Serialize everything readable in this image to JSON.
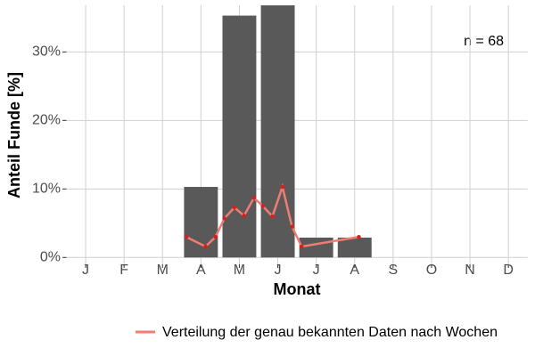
{
  "chart_data": {
    "type": "bar",
    "categories": [
      "J",
      "F",
      "M",
      "A",
      "M",
      "J",
      "J",
      "A",
      "S",
      "O",
      "N",
      "D"
    ],
    "values": [
      0,
      0,
      0,
      10.3,
      35.3,
      36.8,
      2.9,
      2.9,
      0,
      0,
      0,
      0
    ],
    "color": "#595959",
    "xlabel": "Monat",
    "ylabel": "Anteil Funde [%]",
    "ylim": [
      -1,
      36.8
    ],
    "yticks": [
      {
        "value": 0,
        "label": "0%"
      },
      {
        "value": 10,
        "label": "10%"
      },
      {
        "value": 20,
        "label": "20%"
      },
      {
        "value": 30,
        "label": "30%"
      }
    ],
    "grid": true,
    "annotation": "n = 68",
    "legend": "bottom-right",
    "line": {
      "name": "Verteilung der genau bekannten Daten nach Wochen",
      "color": "#f07c72",
      "point_color": "#e31a1c",
      "x": [
        3.62,
        4.12,
        4.38,
        4.61,
        4.87,
        5.12,
        5.38,
        5.61,
        5.86,
        6.12,
        6.37,
        6.62,
        8.11
      ],
      "values": [
        3.0,
        1.6,
        3.0,
        5.7,
        7.3,
        6.1,
        8.7,
        7.5,
        6.0,
        10.3,
        4.5,
        1.6,
        3.0
      ]
    }
  }
}
